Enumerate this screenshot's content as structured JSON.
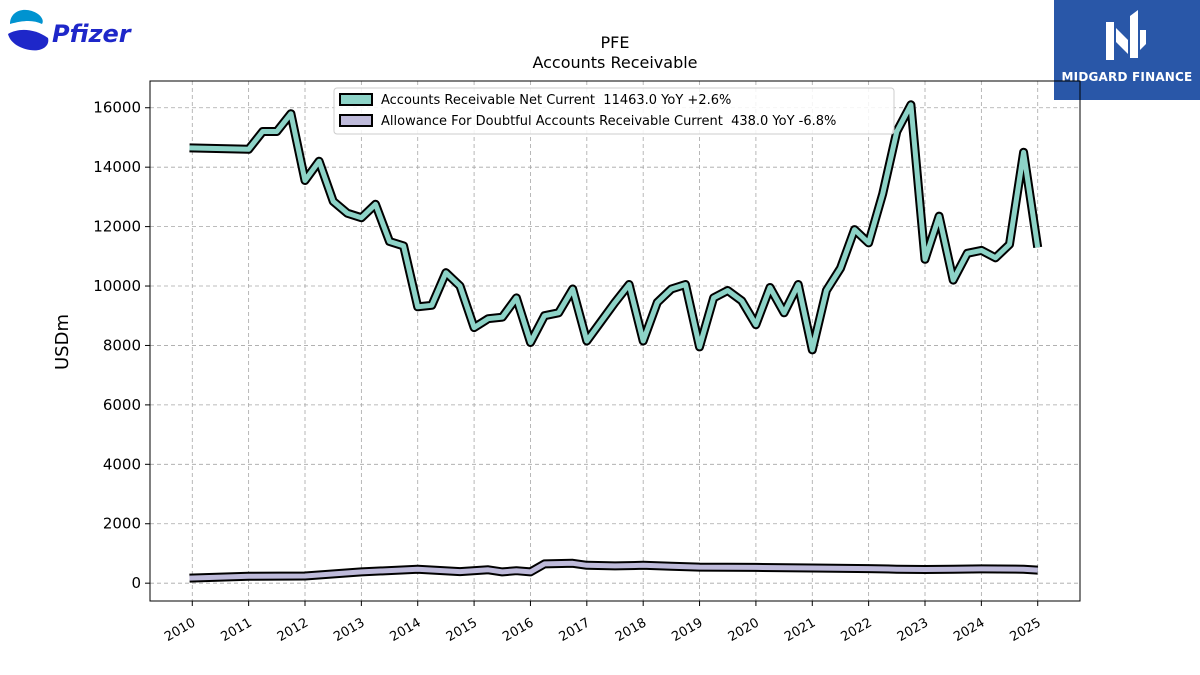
{
  "brand": {
    "name": "Pfizer",
    "color": "#1e27c9",
    "accent": "#0093d0"
  },
  "watermark": {
    "name": "MIDGARD FINANCE",
    "bg": "#2957a8"
  },
  "chart_data": {
    "type": "line",
    "title": "PFE",
    "subtitle": "Accounts Receivable",
    "ylabel": "USDm",
    "xlabel": "",
    "ylim": [
      -600,
      16900
    ],
    "xlim": [
      2009.25,
      2025.75
    ],
    "yticks": [
      0,
      2000,
      4000,
      6000,
      8000,
      10000,
      12000,
      14000,
      16000
    ],
    "xticks": [
      2010,
      2011,
      2012,
      2013,
      2014,
      2015,
      2016,
      2017,
      2018,
      2019,
      2020,
      2021,
      2022,
      2023,
      2024,
      2025
    ],
    "grid": true,
    "legend_position": "top",
    "series": [
      {
        "name": "Accounts Receivable Net Current",
        "legend": "Accounts Receivable Net Current  11463.0 YoY +2.6%",
        "color": "#8dd3c7",
        "points": [
          [
            2009.95,
            14650
          ],
          [
            2011.0,
            14600
          ],
          [
            2011.25,
            15200
          ],
          [
            2011.5,
            15200
          ],
          [
            2011.75,
            15800
          ],
          [
            2012.0,
            13550
          ],
          [
            2012.25,
            14200
          ],
          [
            2012.5,
            12850
          ],
          [
            2012.75,
            12450
          ],
          [
            2013.0,
            12300
          ],
          [
            2013.25,
            12750
          ],
          [
            2013.5,
            11500
          ],
          [
            2013.75,
            11350
          ],
          [
            2014.0,
            9300
          ],
          [
            2014.25,
            9350
          ],
          [
            2014.5,
            10450
          ],
          [
            2014.75,
            10000
          ],
          [
            2015.0,
            8600
          ],
          [
            2015.25,
            8900
          ],
          [
            2015.5,
            8950
          ],
          [
            2015.75,
            9600
          ],
          [
            2016.0,
            8100
          ],
          [
            2016.25,
            9000
          ],
          [
            2016.5,
            9100
          ],
          [
            2016.75,
            9900
          ],
          [
            2017.0,
            8150
          ],
          [
            2017.25,
            8800
          ],
          [
            2017.5,
            9450
          ],
          [
            2017.75,
            10050
          ],
          [
            2018.0,
            8150
          ],
          [
            2018.25,
            9450
          ],
          [
            2018.5,
            9900
          ],
          [
            2018.75,
            10050
          ],
          [
            2019.0,
            7950
          ],
          [
            2019.25,
            9600
          ],
          [
            2019.5,
            9850
          ],
          [
            2019.75,
            9500
          ],
          [
            2020.0,
            8700
          ],
          [
            2020.25,
            9950
          ],
          [
            2020.5,
            9100
          ],
          [
            2020.75,
            10050
          ],
          [
            2021.0,
            7850
          ],
          [
            2021.25,
            9850
          ],
          [
            2021.5,
            10600
          ],
          [
            2021.75,
            11900
          ],
          [
            2022.0,
            11450
          ],
          [
            2022.25,
            13100
          ],
          [
            2022.5,
            15200
          ],
          [
            2022.75,
            16100
          ],
          [
            2023.0,
            10900
          ],
          [
            2023.25,
            12350
          ],
          [
            2023.5,
            10200
          ],
          [
            2023.75,
            11100
          ],
          [
            2024.0,
            11200
          ],
          [
            2024.25,
            10950
          ],
          [
            2024.5,
            11400
          ],
          [
            2024.75,
            14500
          ],
          [
            2025.0,
            11300
          ]
        ]
      },
      {
        "name": "Allowance For Doubtful Accounts Receivable Current",
        "legend": "Allowance For Doubtful Accounts Receivable Current  438.0 YoY -6.8%",
        "color": "#bebada",
        "points": [
          [
            2009.95,
            170
          ],
          [
            2011.0,
            230
          ],
          [
            2012.0,
            240
          ],
          [
            2013.0,
            380
          ],
          [
            2014.0,
            470
          ],
          [
            2014.75,
            390
          ],
          [
            2015.25,
            450
          ],
          [
            2015.5,
            380
          ],
          [
            2015.75,
            420
          ],
          [
            2016.0,
            380
          ],
          [
            2016.25,
            650
          ],
          [
            2016.75,
            670
          ],
          [
            2017.0,
            600
          ],
          [
            2017.5,
            580
          ],
          [
            2018.0,
            600
          ],
          [
            2018.5,
            570
          ],
          [
            2019.0,
            540
          ],
          [
            2020.0,
            530
          ],
          [
            2021.0,
            510
          ],
          [
            2022.0,
            490
          ],
          [
            2022.5,
            470
          ],
          [
            2023.0,
            460
          ],
          [
            2023.5,
            470
          ],
          [
            2024.0,
            480
          ],
          [
            2024.75,
            470
          ],
          [
            2025.0,
            440
          ]
        ]
      }
    ]
  }
}
